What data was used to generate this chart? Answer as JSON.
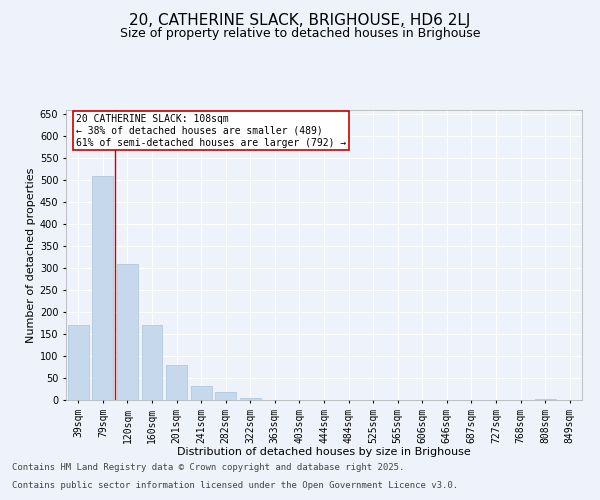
{
  "title": "20, CATHERINE SLACK, BRIGHOUSE, HD6 2LJ",
  "subtitle": "Size of property relative to detached houses in Brighouse",
  "xlabel": "Distribution of detached houses by size in Brighouse",
  "ylabel": "Number of detached properties",
  "categories": [
    "39sqm",
    "79sqm",
    "120sqm",
    "160sqm",
    "201sqm",
    "241sqm",
    "282sqm",
    "322sqm",
    "363sqm",
    "403sqm",
    "444sqm",
    "484sqm",
    "525sqm",
    "565sqm",
    "606sqm",
    "646sqm",
    "687sqm",
    "727sqm",
    "768sqm",
    "808sqm",
    "849sqm"
  ],
  "values": [
    170,
    510,
    310,
    170,
    80,
    33,
    18,
    5,
    1,
    0,
    0,
    0,
    0,
    0,
    0,
    0,
    0,
    0,
    0,
    3,
    0
  ],
  "bar_color": "#c5d8ec",
  "bar_edge_color": "#a8c4dc",
  "vline_pos": 1.5,
  "vline_color": "#cc0000",
  "annotation_text": "20 CATHERINE SLACK: 108sqm\n← 38% of detached houses are smaller (489)\n61% of semi-detached houses are larger (792) →",
  "annotation_box_facecolor": "#ffffff",
  "annotation_box_edgecolor": "#cc0000",
  "ylim": [
    0,
    660
  ],
  "yticks": [
    0,
    50,
    100,
    150,
    200,
    250,
    300,
    350,
    400,
    450,
    500,
    550,
    600,
    650
  ],
  "background_color": "#eef2fa",
  "grid_color": "#ffffff",
  "footer_line1": "Contains HM Land Registry data © Crown copyright and database right 2025.",
  "footer_line2": "Contains public sector information licensed under the Open Government Licence v3.0.",
  "title_fontsize": 11,
  "subtitle_fontsize": 9,
  "axis_label_fontsize": 8,
  "tick_fontsize": 7,
  "footer_fontsize": 6.5
}
